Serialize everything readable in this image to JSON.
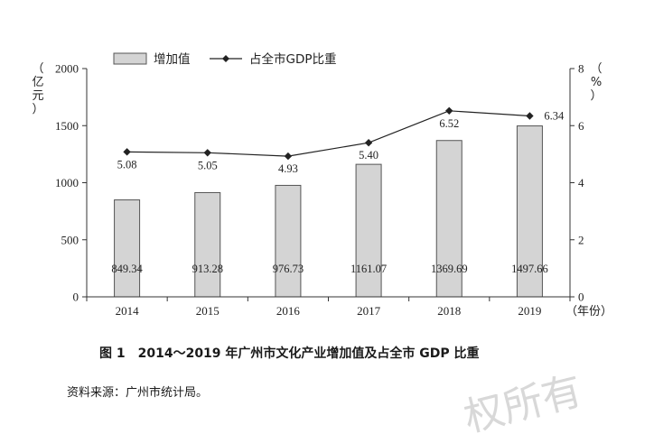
{
  "chart_data": {
    "type": "bar+line",
    "categories": [
      "2014",
      "2015",
      "2016",
      "2017",
      "2018",
      "2019"
    ],
    "series": [
      {
        "name": "增加值",
        "type": "bar",
        "axis": "left",
        "values": [
          849.34,
          913.28,
          976.73,
          1161.07,
          1369.69,
          1497.66
        ],
        "labels": [
          "849.34",
          "913.28",
          "976.73",
          "1161.07",
          "1369.69",
          "1497.66"
        ],
        "color": "#d4d4d4"
      },
      {
        "name": "占全市GDP比重",
        "type": "line",
        "axis": "right",
        "values": [
          5.08,
          5.05,
          4.93,
          5.4,
          6.52,
          6.34
        ],
        "labels": [
          "5.08",
          "5.05",
          "4.93",
          "5.40",
          "6.52",
          "6.34"
        ],
        "color": "#222222"
      }
    ],
    "y_left": {
      "unit_label": "（亿元）",
      "ylim": [
        0,
        2000
      ],
      "ticks": [
        "0",
        "500",
        "1000",
        "1500",
        "2000"
      ]
    },
    "y_right": {
      "unit_label": "（%）",
      "ylim": [
        0,
        8
      ],
      "ticks": [
        "0",
        "2",
        "4",
        "6",
        "8"
      ]
    },
    "x_unit_label": "（年份）",
    "grid": false,
    "legend": "top-left"
  },
  "caption": "图 1　2014～2019 年广州市文化产业增加值及占全市 GDP 比重",
  "source": "资料来源：广州市统计局。",
  "watermark": "权所有"
}
